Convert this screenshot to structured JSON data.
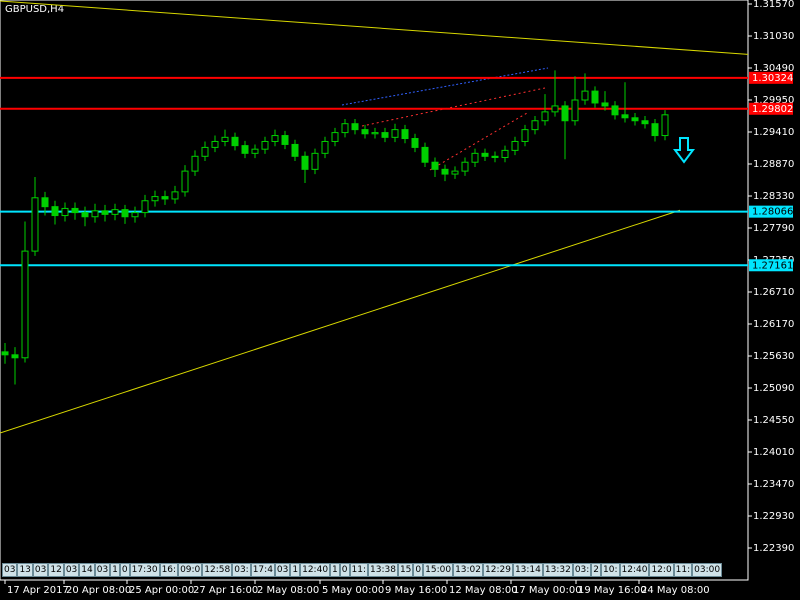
{
  "chart_data": {
    "type": "candlestick",
    "title": "GBPUSD,H4",
    "color": "#00d000",
    "open": [
      1.257,
      1.2565,
      1.256,
      1.274,
      1.283,
      1.2815,
      1.28,
      1.2812,
      1.2805,
      1.2798,
      1.2808,
      1.2802,
      1.281,
      1.2798,
      1.2805,
      1.2825,
      1.2832,
      1.2828,
      1.284,
      1.2875,
      1.29,
      1.2915,
      1.2925,
      1.2932,
      1.2918,
      1.2905,
      1.2912,
      1.2925,
      1.2935,
      1.292,
      1.29,
      1.2878,
      1.2905,
      1.2925,
      1.294,
      1.2955,
      1.2945,
      1.2938,
      1.294,
      1.2932,
      1.2945,
      1.293,
      1.2915,
      1.289,
      1.2878,
      1.287,
      1.2875,
      1.289,
      1.2905,
      1.29,
      1.2898,
      1.291,
      1.2925,
      1.2945,
      1.296,
      1.2975,
      1.2985,
      1.296,
      1.2995,
      1.301,
      1.299,
      1.2985,
      1.297,
      1.2965,
      1.296,
      1.2955,
      1.2935
    ],
    "high": [
      1.2585,
      1.2578,
      1.279,
      1.2865,
      1.284,
      1.2825,
      1.2822,
      1.2822,
      1.2815,
      1.282,
      1.2818,
      1.282,
      1.2818,
      1.2815,
      1.2835,
      1.2842,
      1.2842,
      1.285,
      1.2885,
      1.291,
      1.2925,
      1.2935,
      1.2945,
      1.294,
      1.2926,
      1.292,
      1.2933,
      1.2945,
      1.2943,
      1.2928,
      1.2908,
      1.2913,
      1.2933,
      1.2948,
      1.2963,
      1.2963,
      1.2953,
      1.2948,
      1.2948,
      1.2955,
      1.2953,
      1.2938,
      1.2923,
      1.2898,
      1.2886,
      1.2883,
      1.2898,
      1.2913,
      1.2913,
      1.2908,
      1.2918,
      1.2933,
      1.2953,
      1.2968,
      1.3005,
      1.3045,
      1.2993,
      1.3035,
      1.304,
      1.3018,
      1.301,
      1.2993,
      1.3025,
      1.2973,
      1.2968,
      1.2963,
      1.2978
    ],
    "low": [
      1.255,
      1.2515,
      1.2552,
      1.2732,
      1.28,
      1.2785,
      1.279,
      1.2793,
      1.2782,
      1.2788,
      1.279,
      1.2792,
      1.2786,
      1.2788,
      1.2797,
      1.2815,
      1.2818,
      1.282,
      1.2832,
      1.2867,
      1.2892,
      1.2907,
      1.2917,
      1.291,
      1.2897,
      1.2897,
      1.2904,
      1.2917,
      1.2912,
      1.2892,
      1.2855,
      1.287,
      1.2897,
      1.2917,
      1.2932,
      1.2937,
      1.293,
      1.293,
      1.2924,
      1.2924,
      1.2922,
      1.2907,
      1.2882,
      1.2865,
      1.2858,
      1.2862,
      1.2867,
      1.2882,
      1.2892,
      1.289,
      1.289,
      1.2902,
      1.2917,
      1.2937,
      1.2952,
      1.2967,
      1.2895,
      1.2952,
      1.2987,
      1.2982,
      1.2977,
      1.2962,
      1.2957,
      1.2952,
      1.2947,
      1.2925,
      1.2927
    ],
    "close": [
      1.2565,
      1.256,
      1.274,
      1.283,
      1.2815,
      1.28,
      1.2812,
      1.2805,
      1.2798,
      1.2808,
      1.2802,
      1.281,
      1.2798,
      1.2805,
      1.2825,
      1.2832,
      1.2828,
      1.284,
      1.2875,
      1.29,
      1.2915,
      1.2925,
      1.2932,
      1.2918,
      1.2905,
      1.2912,
      1.2925,
      1.2935,
      1.292,
      1.29,
      1.2878,
      1.2905,
      1.2925,
      1.294,
      1.2955,
      1.2945,
      1.2938,
      1.294,
      1.2932,
      1.2945,
      1.293,
      1.2915,
      1.289,
      1.2878,
      1.287,
      1.2875,
      1.289,
      1.2905,
      1.29,
      1.2898,
      1.291,
      1.2925,
      1.2945,
      1.296,
      1.2975,
      1.2985,
      1.296,
      1.2995,
      1.301,
      1.299,
      1.2985,
      1.297,
      1.2965,
      1.296,
      1.2955,
      1.2935,
      1.297
    ],
    "xlim": [
      -0.5,
      74.3
    ],
    "xticks": [
      {
        "value": 0,
        "label": "17 Apr 2017"
      },
      {
        "value": 5.9,
        "label": "20 Apr 08:00"
      },
      {
        "value": 12.2,
        "label": "25 Apr 00:00"
      },
      {
        "value": 18.6,
        "label": "27 Apr 16:00"
      },
      {
        "value": 25,
        "label": "2 May 08:00"
      },
      {
        "value": 31.5,
        "label": "5 May 00:00"
      },
      {
        "value": 37.8,
        "label": "9 May 16:00"
      },
      {
        "value": 44.2,
        "label": "12 May 08:00"
      },
      {
        "value": 50.6,
        "label": "17 May 00:00"
      },
      {
        "value": 57.1,
        "label": "19 May 16:00"
      },
      {
        "value": 63.4,
        "label": "24 May 08:00"
      }
    ],
    "ylim": [
      1.2185,
      1.316375
    ],
    "yticks": [
      {
        "value": 1.3157,
        "label": "1.31570"
      },
      {
        "value": 1.3103,
        "label": "1.31030"
      },
      {
        "value": 1.3049,
        "label": "1.30490"
      },
      {
        "value": 1.2995,
        "label": "1.29950"
      },
      {
        "value": 1.2941,
        "label": "1.29410"
      },
      {
        "value": 1.2887,
        "label": "1.28870"
      },
      {
        "value": 1.2833,
        "label": "1.28330"
      },
      {
        "value": 1.2779,
        "label": "1.27790"
      },
      {
        "value": 1.2725,
        "label": "1.27250"
      },
      {
        "value": 1.2671,
        "label": "1.26710"
      },
      {
        "value": 1.2617,
        "label": "1.26170"
      },
      {
        "value": 1.2563,
        "label": "1.25630"
      },
      {
        "value": 1.2509,
        "label": "1.25090"
      },
      {
        "value": 1.2455,
        "label": "1.24550"
      },
      {
        "value": 1.2401,
        "label": "1.24010"
      },
      {
        "value": 1.2347,
        "label": "1.23470"
      },
      {
        "value": 1.2293,
        "label": "1.22930"
      },
      {
        "value": 1.2239,
        "label": "1.22390"
      }
    ],
    "hlines": [
      {
        "value": 1.30324,
        "color": "#ff0000"
      },
      {
        "value": 1.29802,
        "color": "#ff0000"
      },
      {
        "value": 1.28066,
        "color": "#00e5ff"
      },
      {
        "value": 1.27161,
        "color": "#00e5ff"
      }
    ],
    "lines": [
      {
        "color": "#d8d800",
        "x": [
          -0.5,
          74.3
        ],
        "y": [
          1.3162,
          1.3072
        ]
      },
      {
        "color": "#d8d800",
        "x": [
          -0.5,
          67.5
        ],
        "y": [
          1.2433,
          1.2809
        ]
      }
    ],
    "time_markers": [
      "03",
      "13",
      "03",
      "12",
      "03",
      "14",
      "03",
      "1",
      "0",
      "17:30",
      "16:",
      "09:0",
      "12:58",
      "03:",
      "17:4",
      "03",
      "1",
      "12:40",
      "1",
      "0",
      "11:",
      "13:38",
      "15",
      "0",
      "15:00",
      "13:02",
      "12:29",
      "13:14",
      "13:32",
      "03:",
      "2",
      "10:",
      "12:40",
      "12:0",
      "11:",
      "03:00"
    ]
  }
}
